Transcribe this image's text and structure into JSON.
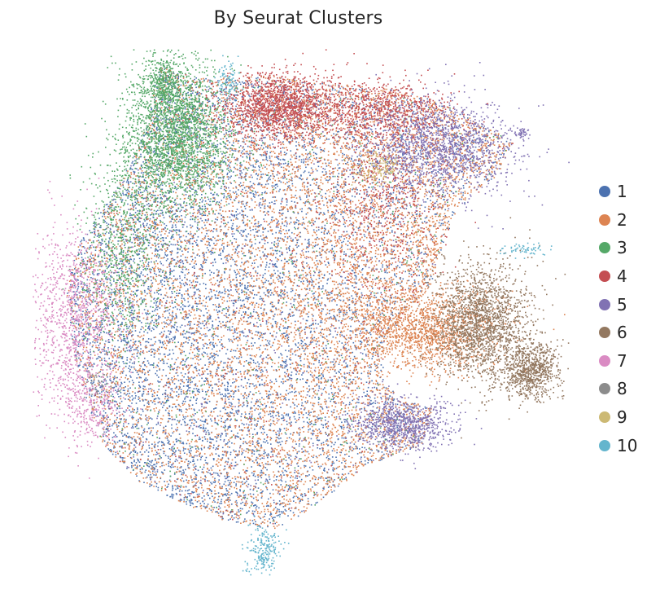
{
  "chart_data": {
    "type": "scatter",
    "title": "By Seurat Clusters",
    "xlabel": "",
    "ylabel": "",
    "grid": false,
    "legend_position": "right",
    "series": [
      {
        "name": "1",
        "color": "#4c72b0"
      },
      {
        "name": "2",
        "color": "#dd8452"
      },
      {
        "name": "3",
        "color": "#55a868"
      },
      {
        "name": "4",
        "color": "#c44e52"
      },
      {
        "name": "5",
        "color": "#8172b3"
      },
      {
        "name": "6",
        "color": "#937860"
      },
      {
        "name": "7",
        "color": "#da8bc3"
      },
      {
        "name": "8",
        "color": "#8c8c8c"
      },
      {
        "name": "9",
        "color": "#ccb974"
      },
      {
        "name": "10",
        "color": "#64b5cd"
      }
    ]
  }
}
